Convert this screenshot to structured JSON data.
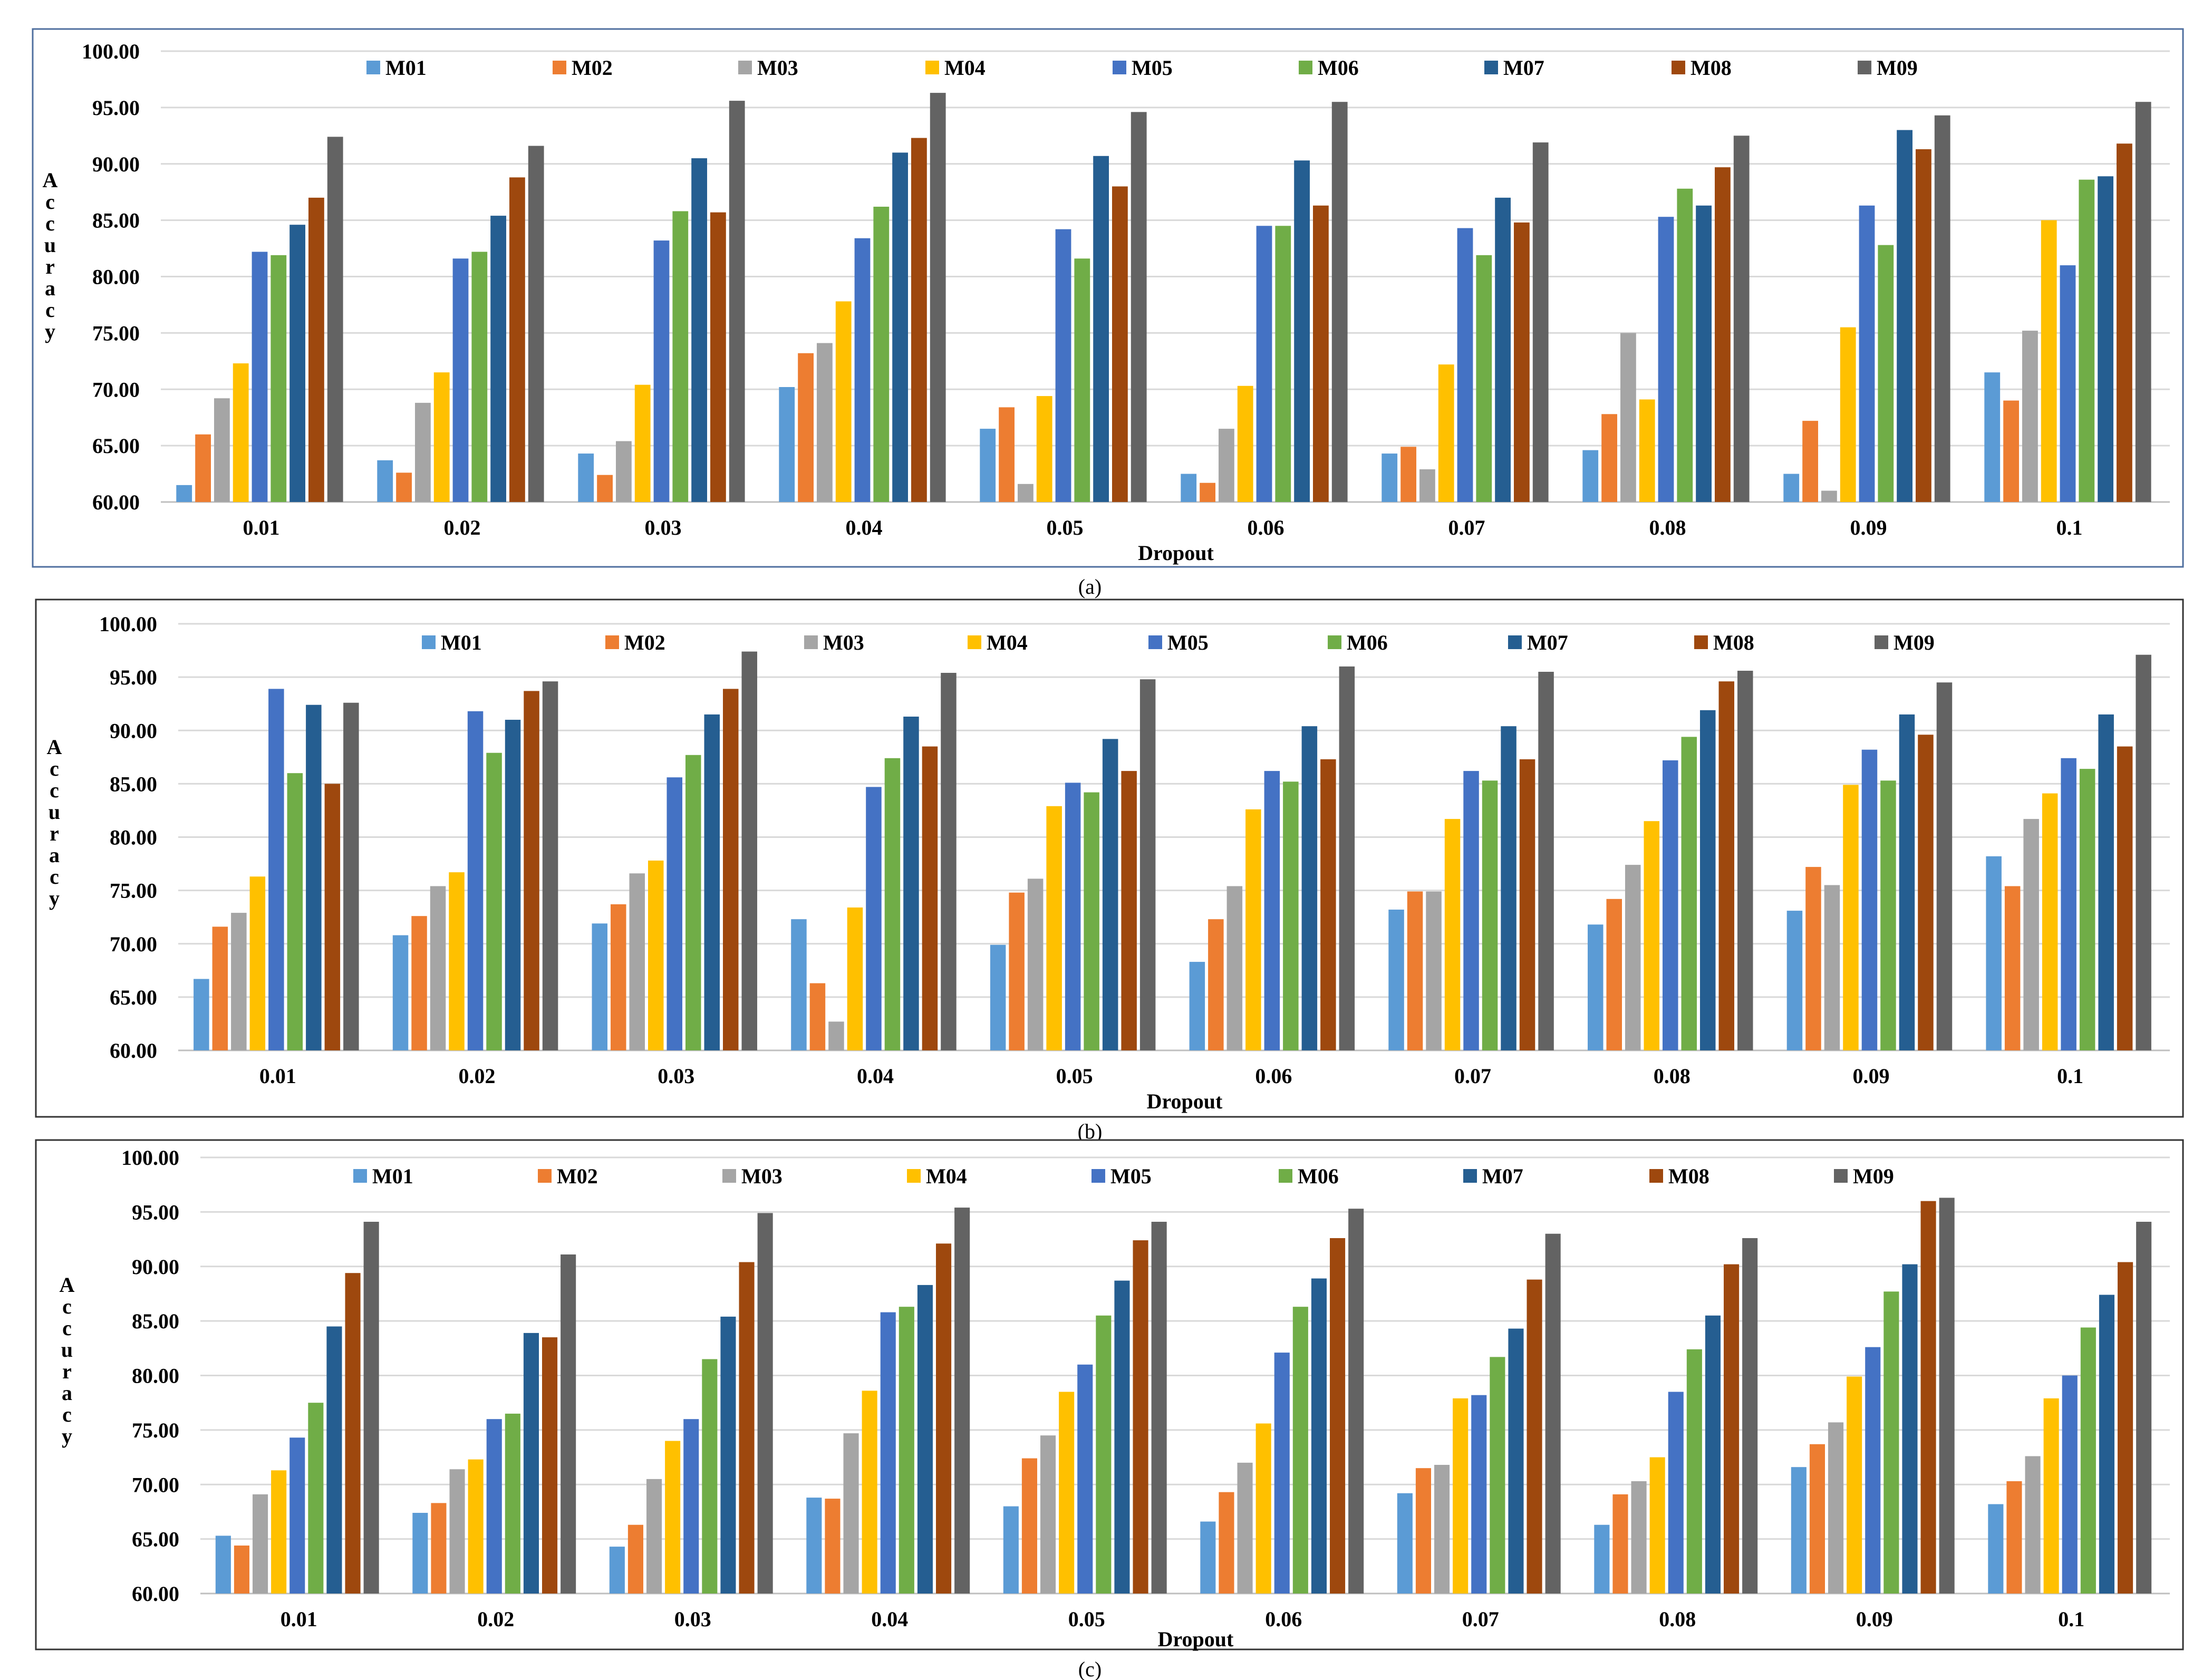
{
  "colors": {
    "M01": "#5B9BD5",
    "M02": "#ED7D31",
    "M03": "#A5A5A5",
    "M04": "#FFC000",
    "M05": "#4472C4",
    "M06": "#70AD47",
    "M07": "#255E91",
    "M08": "#9E480E",
    "M09": "#636363",
    "grid": "#d9d9d9",
    "frame": "#4f6f9f"
  },
  "chart_data": [
    {
      "type": "bar",
      "caption": "(a)",
      "title": "",
      "xlabel": "Dropout",
      "ylabel": "Accuracy",
      "ylim": [
        60,
        100
      ],
      "yticks": [
        "60.00",
        "65.00",
        "70.00",
        "75.00",
        "80.00",
        "85.00",
        "90.00",
        "95.00",
        "100.00"
      ],
      "grid": true,
      "legend": "top",
      "categories": [
        "0.01",
        "0.02",
        "0.03",
        "0.04",
        "0.05",
        "0.06",
        "0.07",
        "0.08",
        "0.09",
        "0.1"
      ],
      "series": [
        {
          "name": "M01",
          "values": [
            61.5,
            63.7,
            64.3,
            70.2,
            66.5,
            62.5,
            64.3,
            64.6,
            62.5,
            71.5
          ]
        },
        {
          "name": "M02",
          "values": [
            66.0,
            62.6,
            62.4,
            73.2,
            68.4,
            61.7,
            64.9,
            67.8,
            67.2,
            69.0
          ]
        },
        {
          "name": "M03",
          "values": [
            69.2,
            68.8,
            65.4,
            74.1,
            61.6,
            66.5,
            62.9,
            75.0,
            61.0,
            75.2
          ]
        },
        {
          "name": "M04",
          "values": [
            72.3,
            71.5,
            70.4,
            77.8,
            69.4,
            70.3,
            72.2,
            69.1,
            75.5,
            85.0
          ]
        },
        {
          "name": "M05",
          "values": [
            82.2,
            81.6,
            83.2,
            83.4,
            84.2,
            84.5,
            84.3,
            85.3,
            86.3,
            81.0
          ]
        },
        {
          "name": "M06",
          "values": [
            81.9,
            82.2,
            85.8,
            86.2,
            81.6,
            84.5,
            81.9,
            87.8,
            82.8,
            88.6
          ]
        },
        {
          "name": "M07",
          "values": [
            84.6,
            85.4,
            90.5,
            91.0,
            90.7,
            90.3,
            87.0,
            86.3,
            93.0,
            88.9
          ]
        },
        {
          "name": "M08",
          "values": [
            87.0,
            88.8,
            85.7,
            92.3,
            88.0,
            86.3,
            84.8,
            89.7,
            91.3,
            91.8
          ]
        },
        {
          "name": "M09",
          "values": [
            92.4,
            91.6,
            95.6,
            96.3,
            94.6,
            95.5,
            91.9,
            92.5,
            94.3,
            95.5
          ]
        }
      ]
    },
    {
      "type": "bar",
      "caption": "(b)",
      "title": "",
      "xlabel": "Dropout",
      "ylabel": "Accuracy",
      "ylim": [
        60,
        100
      ],
      "yticks": [
        "60.00",
        "65.00",
        "70.00",
        "75.00",
        "80.00",
        "85.00",
        "90.00",
        "95.00",
        "100.00"
      ],
      "grid": true,
      "legend": "top",
      "categories": [
        "0.01",
        "0.02",
        "0.03",
        "0.04",
        "0.05",
        "0.06",
        "0.07",
        "0.08",
        "0.09",
        "0.1"
      ],
      "series": [
        {
          "name": "M01",
          "values": [
            66.7,
            70.8,
            71.9,
            72.3,
            69.9,
            68.3,
            73.2,
            71.8,
            73.1,
            78.2
          ]
        },
        {
          "name": "M02",
          "values": [
            71.6,
            72.6,
            73.7,
            66.3,
            74.8,
            72.3,
            74.9,
            74.2,
            77.2,
            75.4
          ]
        },
        {
          "name": "M03",
          "values": [
            72.9,
            75.4,
            76.6,
            62.7,
            76.1,
            75.4,
            74.9,
            77.4,
            75.5,
            81.7
          ]
        },
        {
          "name": "M04",
          "values": [
            76.3,
            76.7,
            77.8,
            73.4,
            82.9,
            82.6,
            81.7,
            81.5,
            84.9,
            84.1
          ]
        },
        {
          "name": "M05",
          "values": [
            93.9,
            91.8,
            85.6,
            84.7,
            85.1,
            86.2,
            86.2,
            87.2,
            88.2,
            87.4
          ]
        },
        {
          "name": "M06",
          "values": [
            86.0,
            87.9,
            87.7,
            87.4,
            84.2,
            85.2,
            85.3,
            89.4,
            85.3,
            86.4
          ]
        },
        {
          "name": "M07",
          "values": [
            92.4,
            91.0,
            91.5,
            91.3,
            89.2,
            90.4,
            90.4,
            91.9,
            91.5,
            91.5
          ]
        },
        {
          "name": "M08",
          "values": [
            85.0,
            93.7,
            93.9,
            88.5,
            86.2,
            87.3,
            87.3,
            94.6,
            89.6,
            88.5
          ]
        },
        {
          "name": "M09",
          "values": [
            92.6,
            94.6,
            97.4,
            95.4,
            94.8,
            96.0,
            95.5,
            95.6,
            94.5,
            97.1
          ]
        }
      ]
    },
    {
      "type": "bar",
      "caption": "(c)",
      "title": "",
      "xlabel": "Dropout",
      "ylabel": "Accuracy",
      "ylim": [
        60,
        100
      ],
      "yticks": [
        "60.00",
        "65.00",
        "70.00",
        "75.00",
        "80.00",
        "85.00",
        "90.00",
        "95.00",
        "100.00"
      ],
      "grid": true,
      "legend": "top",
      "categories": [
        "0.01",
        "0.02",
        "0.03",
        "0.04",
        "0.05",
        "0.06",
        "0.07",
        "0.08",
        "0.09",
        "0.1"
      ],
      "series": [
        {
          "name": "M01",
          "values": [
            65.3,
            67.4,
            64.3,
            68.8,
            68.0,
            66.6,
            69.2,
            66.3,
            71.6,
            68.2
          ]
        },
        {
          "name": "M02",
          "values": [
            64.4,
            68.3,
            66.3,
            68.7,
            72.4,
            69.3,
            71.5,
            69.1,
            73.7,
            70.3
          ]
        },
        {
          "name": "M03",
          "values": [
            69.1,
            71.4,
            70.5,
            74.7,
            74.5,
            72.0,
            71.8,
            70.3,
            75.7,
            72.6
          ]
        },
        {
          "name": "M04",
          "values": [
            71.3,
            72.3,
            74.0,
            78.6,
            78.5,
            75.6,
            77.9,
            72.5,
            79.9,
            77.9
          ]
        },
        {
          "name": "M05",
          "values": [
            74.3,
            76.0,
            76.0,
            85.8,
            81.0,
            82.1,
            78.2,
            78.5,
            82.6,
            80.0
          ]
        },
        {
          "name": "M06",
          "values": [
            77.5,
            76.5,
            81.5,
            86.3,
            85.5,
            86.3,
            81.7,
            82.4,
            87.7,
            84.4
          ]
        },
        {
          "name": "M07",
          "values": [
            84.5,
            83.9,
            85.4,
            88.3,
            88.7,
            88.9,
            84.3,
            85.5,
            90.2,
            87.4
          ]
        },
        {
          "name": "M08",
          "values": [
            89.4,
            83.5,
            90.4,
            92.1,
            92.4,
            92.6,
            88.8,
            90.2,
            96.0,
            90.4
          ]
        },
        {
          "name": "M09",
          "values": [
            94.1,
            91.1,
            94.9,
            95.4,
            94.1,
            95.3,
            93.0,
            92.6,
            96.3,
            94.1
          ]
        }
      ]
    }
  ]
}
